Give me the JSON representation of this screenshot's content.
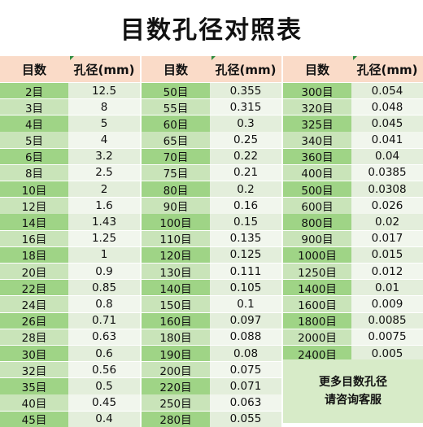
{
  "title": "目数孔径对照表",
  "headers": {
    "mesh": "目数",
    "aperture": "孔径(mm)"
  },
  "columns": [
    {
      "rows": [
        {
          "mesh": "2目",
          "aperture": "12.5"
        },
        {
          "mesh": "3目",
          "aperture": "8"
        },
        {
          "mesh": "4目",
          "aperture": "5"
        },
        {
          "mesh": "5目",
          "aperture": "4"
        },
        {
          "mesh": "6目",
          "aperture": "3.2"
        },
        {
          "mesh": "8目",
          "aperture": "2.5"
        },
        {
          "mesh": "10目",
          "aperture": "2"
        },
        {
          "mesh": "12目",
          "aperture": "1.6"
        },
        {
          "mesh": "14目",
          "aperture": "1.43"
        },
        {
          "mesh": "16目",
          "aperture": "1.25"
        },
        {
          "mesh": "18目",
          "aperture": "1"
        },
        {
          "mesh": "20目",
          "aperture": "0.9"
        },
        {
          "mesh": "22目",
          "aperture": "0.85"
        },
        {
          "mesh": "24目",
          "aperture": "0.8"
        },
        {
          "mesh": "26目",
          "aperture": "0.71"
        },
        {
          "mesh": "28目",
          "aperture": "0.63"
        },
        {
          "mesh": "30目",
          "aperture": "0.6"
        },
        {
          "mesh": "32目",
          "aperture": "0.56"
        },
        {
          "mesh": "35目",
          "aperture": "0.5"
        },
        {
          "mesh": "40目",
          "aperture": "0.45"
        },
        {
          "mesh": "45目",
          "aperture": "0.4"
        }
      ]
    },
    {
      "rows": [
        {
          "mesh": "50目",
          "aperture": "0.355"
        },
        {
          "mesh": "55目",
          "aperture": "0.315"
        },
        {
          "mesh": "60目",
          "aperture": "0.3"
        },
        {
          "mesh": "65目",
          "aperture": "0.25"
        },
        {
          "mesh": "70目",
          "aperture": "0.22"
        },
        {
          "mesh": "75目",
          "aperture": "0.21"
        },
        {
          "mesh": "80目",
          "aperture": "0.2"
        },
        {
          "mesh": "90目",
          "aperture": "0.16"
        },
        {
          "mesh": "100目",
          "aperture": "0.15"
        },
        {
          "mesh": "110目",
          "aperture": "0.135"
        },
        {
          "mesh": "120目",
          "aperture": "0.125"
        },
        {
          "mesh": "130目",
          "aperture": "0.111"
        },
        {
          "mesh": "140目",
          "aperture": "0.105"
        },
        {
          "mesh": "150目",
          "aperture": "0.1"
        },
        {
          "mesh": "160目",
          "aperture": "0.097"
        },
        {
          "mesh": "180目",
          "aperture": "0.088"
        },
        {
          "mesh": "190目",
          "aperture": "0.08"
        },
        {
          "mesh": "200目",
          "aperture": "0.075"
        },
        {
          "mesh": "220目",
          "aperture": "0.071"
        },
        {
          "mesh": "250目",
          "aperture": "0.063"
        },
        {
          "mesh": "280目",
          "aperture": "0.055"
        }
      ]
    },
    {
      "rows": [
        {
          "mesh": "300目",
          "aperture": "0.054"
        },
        {
          "mesh": "320目",
          "aperture": "0.048"
        },
        {
          "mesh": "325目",
          "aperture": "0.045"
        },
        {
          "mesh": "340目",
          "aperture": "0.041"
        },
        {
          "mesh": "360目",
          "aperture": "0.04"
        },
        {
          "mesh": "400目",
          "aperture": "0.0385"
        },
        {
          "mesh": "500目",
          "aperture": "0.0308"
        },
        {
          "mesh": "600目",
          "aperture": "0.026"
        },
        {
          "mesh": "800目",
          "aperture": "0.02"
        },
        {
          "mesh": "900目",
          "aperture": "0.017"
        },
        {
          "mesh": "1000目",
          "aperture": "0.015"
        },
        {
          "mesh": "1250目",
          "aperture": "0.012"
        },
        {
          "mesh": "1400目",
          "aperture": "0.01"
        },
        {
          "mesh": "1600目",
          "aperture": "0.009"
        },
        {
          "mesh": "1800目",
          "aperture": "0.0085"
        },
        {
          "mesh": "2000目",
          "aperture": "0.0075"
        },
        {
          "mesh": "2400目",
          "aperture": "0.005"
        }
      ]
    }
  ],
  "note": {
    "line1": "更多目数孔径",
    "line2": "请咨询客服"
  },
  "colors": {
    "header_bg": "#fadbc8",
    "mesh_bg": "#9fd486",
    "mesh_bg_alt": "#c9e4b9",
    "aperture_bg": "#e3eedb",
    "aperture_bg_alt": "#f1f6ed",
    "note_bg": "#d7ebc8"
  }
}
